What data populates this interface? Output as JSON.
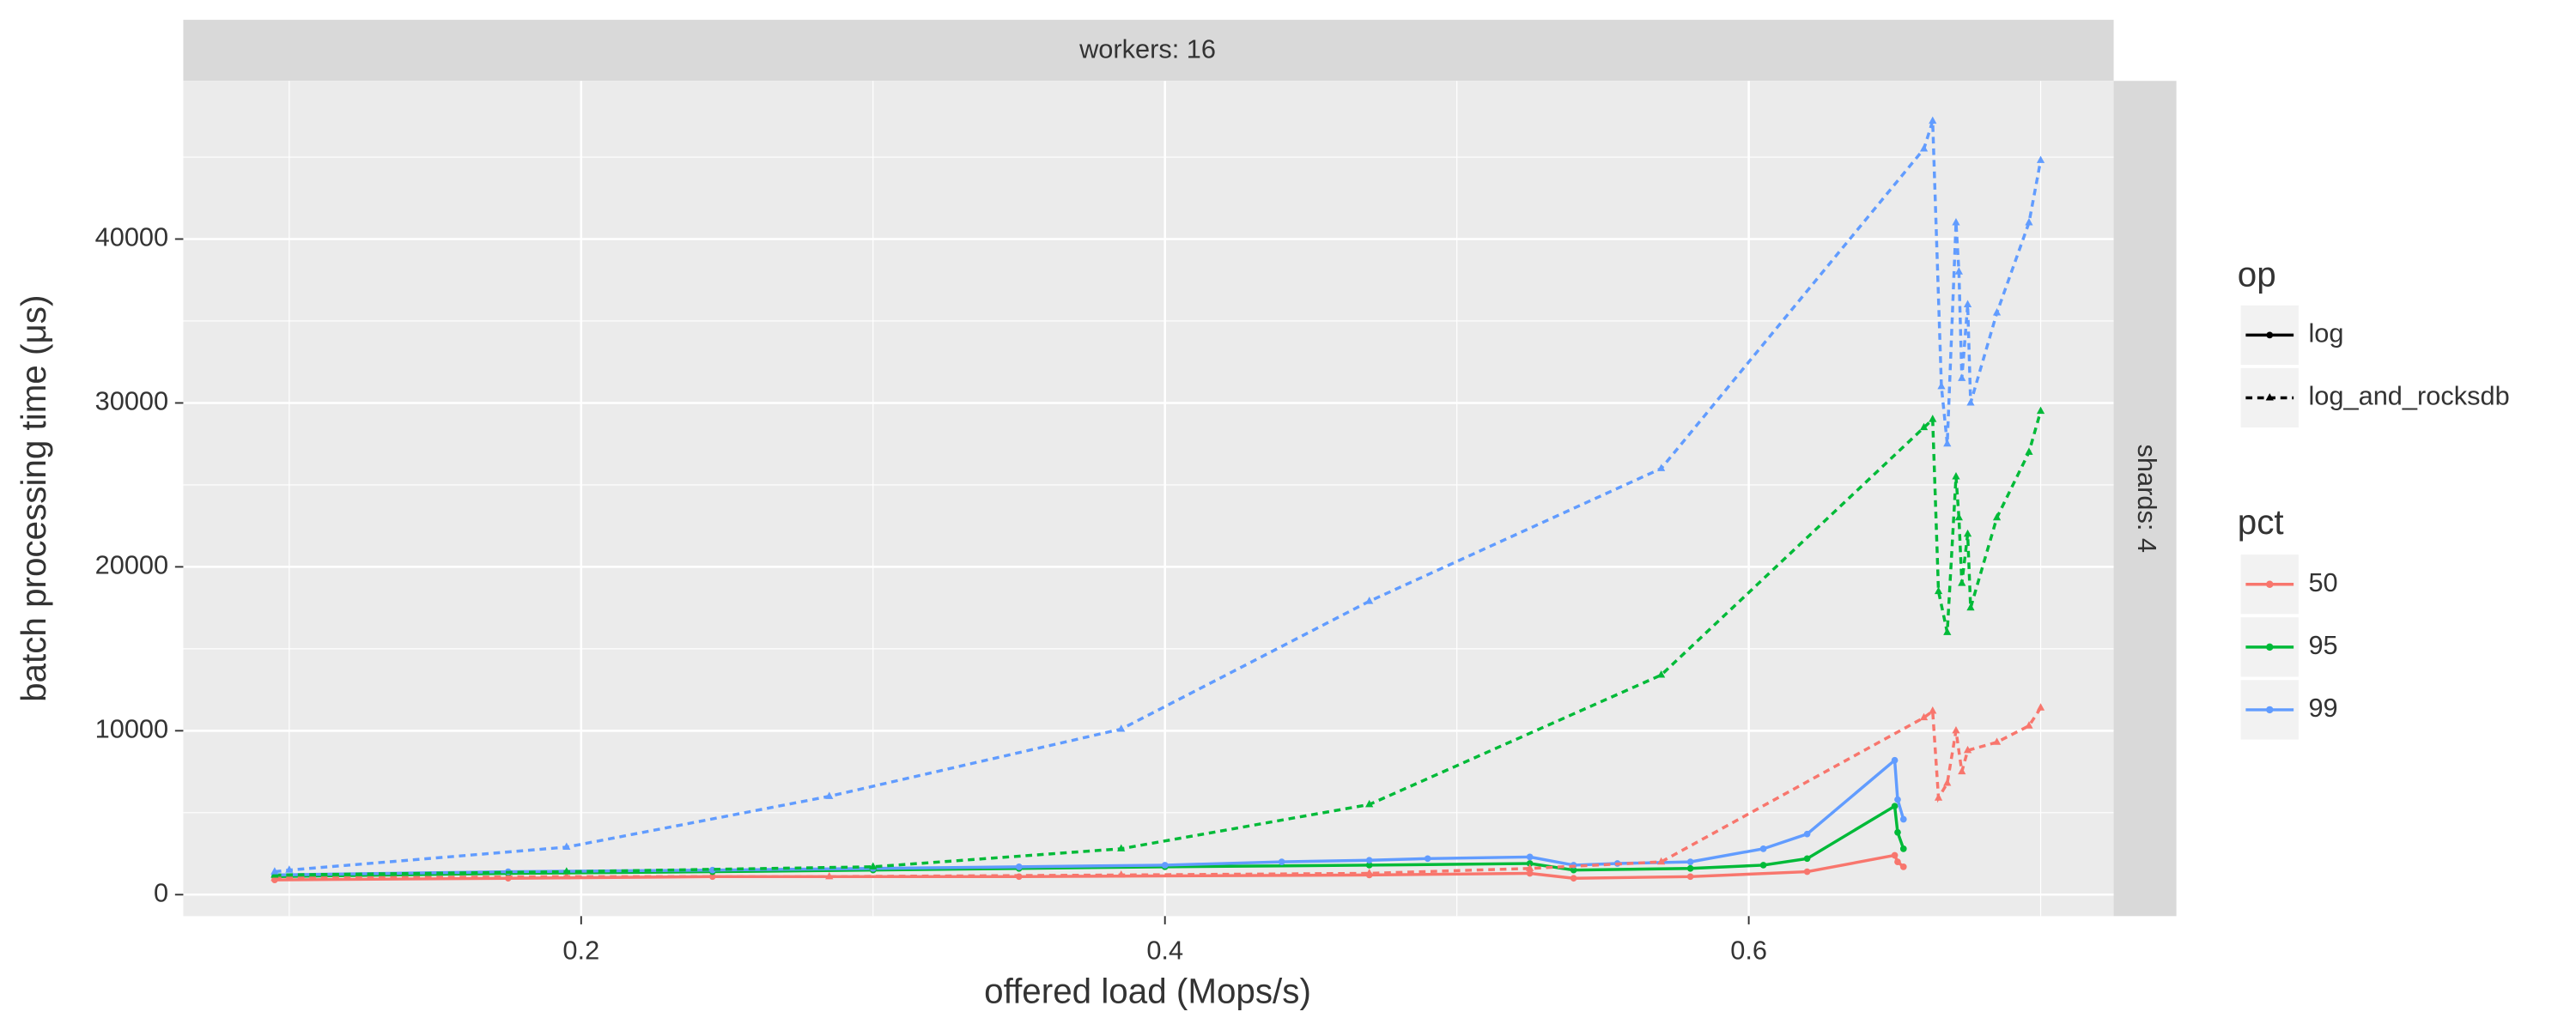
{
  "chart_data": {
    "type": "line",
    "xlabel": "offered load (Mops/s)",
    "ylabel": "batch processing time (μs)",
    "facet_top": "workers: 16",
    "facet_right": "shards: 4",
    "xlim": [
      0.0637,
      0.725
    ],
    "xticks": [
      0.2,
      0.4,
      0.6
    ],
    "ylim": [
      -1309,
      49650
    ],
    "yticks": [
      0,
      10000,
      20000,
      30000,
      40000
    ],
    "grid": true,
    "legend_op": {
      "title": "op",
      "items": [
        {
          "label": "log",
          "dash": "solid",
          "shape": "circle"
        },
        {
          "label": "log_and_rocksdb",
          "dash": "dashed",
          "shape": "triangle"
        }
      ]
    },
    "legend_pct": {
      "title": "pct",
      "items": [
        {
          "label": "50",
          "color": "#f8766d"
        },
        {
          "label": "95",
          "color": "#00ba38"
        },
        {
          "label": "99",
          "color": "#619cff"
        }
      ]
    },
    "series": [
      {
        "color": "#f8766d",
        "dash": "solid",
        "shape": "circle",
        "x": [
          0.095,
          0.175,
          0.245,
          0.35,
          0.47,
          0.525,
          0.54,
          0.58,
          0.62,
          0.65,
          0.651,
          0.653
        ],
        "values": [
          900,
          1000,
          1100,
          1100,
          1200,
          1300,
          1000,
          1100,
          1400,
          2400,
          2000,
          1700
        ]
      },
      {
        "color": "#00ba38",
        "dash": "solid",
        "shape": "circle",
        "x": [
          0.095,
          0.175,
          0.245,
          0.3,
          0.35,
          0.4,
          0.47,
          0.525,
          0.54,
          0.58,
          0.605,
          0.62,
          0.65,
          0.651,
          0.653
        ],
        "values": [
          1100,
          1300,
          1400,
          1500,
          1600,
          1700,
          1800,
          1900,
          1500,
          1600,
          1800,
          2200,
          5400,
          3800,
          2800
        ]
      },
      {
        "color": "#619cff",
        "dash": "solid",
        "shape": "circle",
        "x": [
          0.095,
          0.175,
          0.245,
          0.3,
          0.35,
          0.4,
          0.44,
          0.47,
          0.49,
          0.525,
          0.54,
          0.555,
          0.58,
          0.605,
          0.62,
          0.65,
          0.651,
          0.653
        ],
        "values": [
          1200,
          1400,
          1500,
          1600,
          1700,
          1800,
          2000,
          2100,
          2200,
          2300,
          1800,
          1900,
          2000,
          2800,
          3700,
          8200,
          5800,
          4600
        ]
      },
      {
        "color": "#f8766d",
        "dash": "dashed",
        "shape": "triangle",
        "x": [
          0.095,
          0.195,
          0.285,
          0.385,
          0.47,
          0.525,
          0.57,
          0.66,
          0.663,
          0.665,
          0.668,
          0.671,
          0.673,
          0.675,
          0.685,
          0.696,
          0.7
        ],
        "values": [
          1000,
          1100,
          1100,
          1200,
          1300,
          1600,
          2000,
          10800,
          11200,
          5900,
          6800,
          10000,
          7500,
          8800,
          9300,
          10300,
          11400
        ]
      },
      {
        "color": "#00ba38",
        "dash": "dashed",
        "shape": "triangle",
        "x": [
          0.095,
          0.195,
          0.3,
          0.385,
          0.47,
          0.57,
          0.66,
          0.663,
          0.665,
          0.668,
          0.671,
          0.672,
          0.673,
          0.675,
          0.676,
          0.685,
          0.696,
          0.7
        ],
        "values": [
          1200,
          1400,
          1700,
          2800,
          5500,
          13400,
          28500,
          29000,
          18500,
          16000,
          25500,
          23000,
          19000,
          22000,
          17500,
          23000,
          27000,
          29500
        ]
      },
      {
        "color": "#619cff",
        "dash": "dashed",
        "shape": "triangle",
        "x": [
          0.095,
          0.1,
          0.195,
          0.285,
          0.385,
          0.47,
          0.57,
          0.66,
          0.663,
          0.666,
          0.668,
          0.671,
          0.672,
          0.673,
          0.675,
          0.676,
          0.685,
          0.696,
          0.7
        ],
        "values": [
          1400,
          1500,
          2900,
          6000,
          10100,
          17900,
          26000,
          45500,
          47200,
          31000,
          27500,
          41000,
          38000,
          31500,
          36000,
          30000,
          35500,
          41000,
          44800
        ]
      }
    ]
  }
}
